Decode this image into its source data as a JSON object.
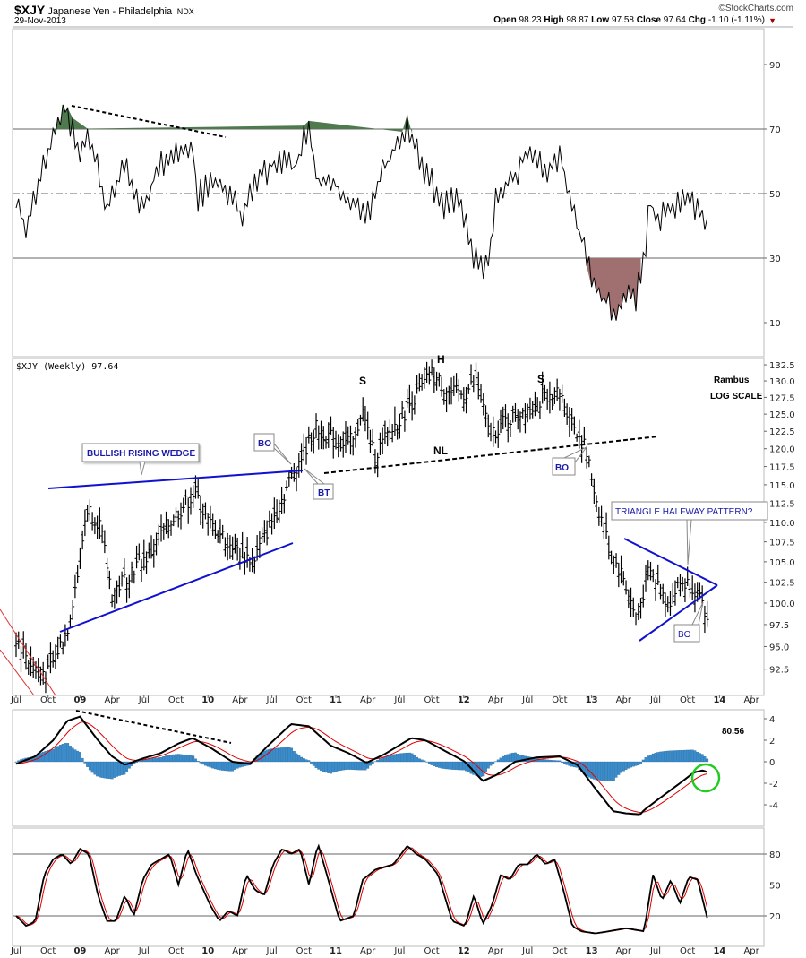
{
  "header": {
    "symbol": "$XJY",
    "name": "Japanese Yen - Philadelphia",
    "exchange": "INDX",
    "date": "29-Nov-2013",
    "copyright": "©StockCharts.com",
    "open_label": "Open",
    "open": "98.23",
    "high_label": "High",
    "high": "98.87",
    "low_label": "Low",
    "low": "97.58",
    "close_label": "Close",
    "close": "97.64",
    "chg_label": "Chg",
    "chg": "-1.10 (-1.11%)"
  },
  "colors": {
    "price": "#000000",
    "trend": "#1010d0",
    "signal": "#e00000",
    "hist": "#3a8ccc",
    "rsi_over": "#4e7a4e",
    "rsi_under": "#a07070",
    "circle": "#22cc22"
  },
  "price_panel": {
    "legend": "$XJY (Weekly) 97.64"
  },
  "annotations": {
    "wedge": "BULLISH RISING WEDGE",
    "bo1": "BO",
    "bt": "BT",
    "s1": "S",
    "h": "H",
    "s2": "S",
    "nl": "NL",
    "bo2": "BO",
    "triangle": "TRIANGLE HALFWAY PATTERN?",
    "bo3": "BO",
    "author": "Rambus",
    "scale": "LOG SCALE",
    "macd_value": "80.56"
  },
  "chart_data": [
    {
      "type": "line",
      "title": "RSI",
      "yticks": [
        90,
        70,
        50,
        30,
        10
      ],
      "ylim": [
        0,
        100
      ],
      "points": [
        [
          2008.5,
          48
        ],
        [
          2008.58,
          38
        ],
        [
          2008.69,
          55
        ],
        [
          2008.76,
          65
        ],
        [
          2008.81,
          72
        ],
        [
          2008.9,
          77
        ],
        [
          2008.97,
          63
        ],
        [
          2009.07,
          68
        ],
        [
          2009.21,
          45
        ],
        [
          2009.35,
          58
        ],
        [
          2009.49,
          45
        ],
        [
          2009.63,
          60
        ],
        [
          2009.77,
          62
        ],
        [
          2009.88,
          66
        ],
        [
          2009.91,
          48
        ],
        [
          2010.05,
          55
        ],
        [
          2010.19,
          48
        ],
        [
          2010.26,
          42
        ],
        [
          2010.4,
          55
        ],
        [
          2010.54,
          60
        ],
        [
          2010.68,
          58
        ],
        [
          2010.79,
          72
        ],
        [
          2010.86,
          52
        ],
        [
          2010.96,
          55
        ],
        [
          2011.1,
          48
        ],
        [
          2011.24,
          42
        ],
        [
          2011.38,
          58
        ],
        [
          2011.56,
          70
        ],
        [
          2011.66,
          60
        ],
        [
          2011.84,
          46
        ],
        [
          2011.98,
          48
        ],
        [
          2012.08,
          30
        ],
        [
          2012.19,
          27
        ],
        [
          2012.26,
          50
        ],
        [
          2012.36,
          54
        ],
        [
          2012.5,
          62
        ],
        [
          2012.64,
          57
        ],
        [
          2012.75,
          62
        ],
        [
          2012.85,
          46
        ],
        [
          2012.96,
          30
        ],
        [
          2013.05,
          20
        ],
        [
          2013.13,
          16
        ],
        [
          2013.2,
          13
        ],
        [
          2013.27,
          20
        ],
        [
          2013.34,
          17
        ],
        [
          2013.41,
          28
        ],
        [
          2013.45,
          48
        ],
        [
          2013.52,
          40
        ],
        [
          2013.59,
          45
        ],
        [
          2013.69,
          48
        ],
        [
          2013.8,
          47
        ],
        [
          2013.87,
          43
        ],
        [
          2013.93,
          37
        ]
      ]
    },
    {
      "type": "ohlc",
      "title": "$XJY (Weekly)",
      "scale": "log",
      "yticks": [
        "132.5",
        "130.0",
        "127.5",
        "125.0",
        "122.5",
        "120.0",
        "117.5",
        "115.0",
        "112.5",
        "110.0",
        "107.5",
        "105.0",
        "102.5",
        "100.0",
        "97.5",
        "95.0",
        "92.5"
      ],
      "close_points": [
        [
          2008.5,
          96
        ],
        [
          2008.62,
          93
        ],
        [
          2008.75,
          92
        ],
        [
          2008.9,
          97
        ],
        [
          2009.0,
          105
        ],
        [
          2009.05,
          112
        ],
        [
          2009.15,
          110
        ],
        [
          2009.25,
          101
        ],
        [
          2009.4,
          104
        ],
        [
          2009.55,
          106
        ],
        [
          2009.7,
          110
        ],
        [
          2009.9,
          114
        ],
        [
          2010.0,
          110
        ],
        [
          2010.2,
          107
        ],
        [
          2010.35,
          105
        ],
        [
          2010.55,
          112
        ],
        [
          2010.7,
          118
        ],
        [
          2010.85,
          123
        ],
        [
          2011.0,
          121
        ],
        [
          2011.15,
          121
        ],
        [
          2011.2,
          126
        ],
        [
          2011.3,
          119
        ],
        [
          2011.45,
          123
        ],
        [
          2011.6,
          127
        ],
        [
          2011.75,
          131
        ],
        [
          2011.9,
          128
        ],
        [
          2012.0,
          128
        ],
        [
          2012.1,
          130
        ],
        [
          2012.2,
          122
        ],
        [
          2012.4,
          125
        ],
        [
          2012.6,
          127
        ],
        [
          2012.75,
          128
        ],
        [
          2012.85,
          124
        ],
        [
          2012.95,
          120
        ],
        [
          2013.05,
          112
        ],
        [
          2013.15,
          106
        ],
        [
          2013.25,
          103
        ],
        [
          2013.35,
          98
        ],
        [
          2013.45,
          104
        ],
        [
          2013.6,
          100
        ],
        [
          2013.7,
          102.5
        ],
        [
          2013.8,
          102
        ],
        [
          2013.91,
          97.64
        ]
      ]
    },
    {
      "type": "line",
      "title": "MACD",
      "yticks": [
        4,
        2,
        0,
        -2,
        -4
      ],
      "ylim": [
        -5.5,
        4.8
      ],
      "macd_points": [
        [
          2008.5,
          -0.2
        ],
        [
          2008.65,
          0.5
        ],
        [
          2008.79,
          2
        ],
        [
          2008.9,
          3.8
        ],
        [
          2009.0,
          4.2
        ],
        [
          2009.14,
          2
        ],
        [
          2009.25,
          0.5
        ],
        [
          2009.35,
          -0.3
        ],
        [
          2009.49,
          0.3
        ],
        [
          2009.63,
          0.8
        ],
        [
          2009.77,
          1.7
        ],
        [
          2009.88,
          2.2
        ],
        [
          2010.02,
          1.3
        ],
        [
          2010.19,
          0
        ],
        [
          2010.33,
          -0.2
        ],
        [
          2010.47,
          1.5
        ],
        [
          2010.65,
          3.5
        ],
        [
          2010.79,
          3.3
        ],
        [
          2010.96,
          1.5
        ],
        [
          2011.1,
          0.8
        ],
        [
          2011.24,
          -0.1
        ],
        [
          2011.38,
          0.7
        ],
        [
          2011.59,
          2.2
        ],
        [
          2011.7,
          2
        ],
        [
          2011.87,
          0.9
        ],
        [
          2012.01,
          0
        ],
        [
          2012.15,
          -1.8
        ],
        [
          2012.26,
          -1.2
        ],
        [
          2012.4,
          0
        ],
        [
          2012.57,
          0.4
        ],
        [
          2012.75,
          0.5
        ],
        [
          2012.89,
          -0.3
        ],
        [
          2013.03,
          -2.5
        ],
        [
          2013.17,
          -4.6
        ],
        [
          2013.27,
          -4.8
        ],
        [
          2013.38,
          -4.9
        ],
        [
          2013.41,
          -4.5
        ],
        [
          2013.52,
          -3.5
        ],
        [
          2013.69,
          -2
        ],
        [
          2013.8,
          -1
        ],
        [
          2013.87,
          -0.8
        ],
        [
          2013.93,
          -1.1
        ]
      ]
    },
    {
      "type": "line",
      "title": "Stochastic",
      "yticks": [
        80,
        50,
        20
      ],
      "ylim": [
        0,
        100
      ],
      "k_points": [
        [
          2008.5,
          20
        ],
        [
          2008.58,
          10
        ],
        [
          2008.65,
          15
        ],
        [
          2008.72,
          60
        ],
        [
          2008.79,
          75
        ],
        [
          2008.86,
          80
        ],
        [
          2008.93,
          70
        ],
        [
          2009.0,
          85
        ],
        [
          2009.07,
          80
        ],
        [
          2009.14,
          40
        ],
        [
          2009.21,
          15
        ],
        [
          2009.28,
          15
        ],
        [
          2009.35,
          40
        ],
        [
          2009.42,
          20
        ],
        [
          2009.49,
          55
        ],
        [
          2009.56,
          70
        ],
        [
          2009.63,
          75
        ],
        [
          2009.7,
          80
        ],
        [
          2009.77,
          50
        ],
        [
          2009.84,
          85
        ],
        [
          2009.91,
          60
        ],
        [
          2010.02,
          30
        ],
        [
          2010.09,
          15
        ],
        [
          2010.16,
          25
        ],
        [
          2010.23,
          20
        ],
        [
          2010.3,
          60
        ],
        [
          2010.37,
          45
        ],
        [
          2010.44,
          40
        ],
        [
          2010.51,
          70
        ],
        [
          2010.58,
          85
        ],
        [
          2010.65,
          80
        ],
        [
          2010.72,
          85
        ],
        [
          2010.79,
          50
        ],
        [
          2010.86,
          90
        ],
        [
          2010.93,
          60
        ],
        [
          2011.03,
          15
        ],
        [
          2011.14,
          20
        ],
        [
          2011.21,
          55
        ],
        [
          2011.31,
          65
        ],
        [
          2011.45,
          70
        ],
        [
          2011.56,
          88
        ],
        [
          2011.63,
          80
        ],
        [
          2011.7,
          75
        ],
        [
          2011.8,
          60
        ],
        [
          2011.91,
          15
        ],
        [
          2012.01,
          10
        ],
        [
          2012.08,
          40
        ],
        [
          2012.15,
          12
        ],
        [
          2012.22,
          30
        ],
        [
          2012.29,
          60
        ],
        [
          2012.36,
          55
        ],
        [
          2012.43,
          70
        ],
        [
          2012.5,
          70
        ],
        [
          2012.57,
          80
        ],
        [
          2012.64,
          70
        ],
        [
          2012.71,
          75
        ],
        [
          2012.78,
          45
        ],
        [
          2012.85,
          10
        ],
        [
          2012.92,
          5
        ],
        [
          2013.03,
          3
        ],
        [
          2013.13,
          5
        ],
        [
          2013.27,
          8
        ],
        [
          2013.41,
          5
        ],
        [
          2013.48,
          60
        ],
        [
          2013.55,
          35
        ],
        [
          2013.62,
          55
        ],
        [
          2013.69,
          32
        ],
        [
          2013.76,
          58
        ],
        [
          2013.83,
          55
        ],
        [
          2013.93,
          5
        ]
      ]
    }
  ],
  "x_axis": {
    "labels": [
      "Jul",
      "Oct",
      "09",
      "Apr",
      "Jul",
      "Oct",
      "10",
      "Apr",
      "Jul",
      "Oct",
      "11",
      "Apr",
      "Jul",
      "Oct",
      "12",
      "Apr",
      "Jul",
      "Oct",
      "13",
      "Apr",
      "Jul",
      "Oct",
      "14",
      "Apr"
    ],
    "start": 2008.5
  }
}
